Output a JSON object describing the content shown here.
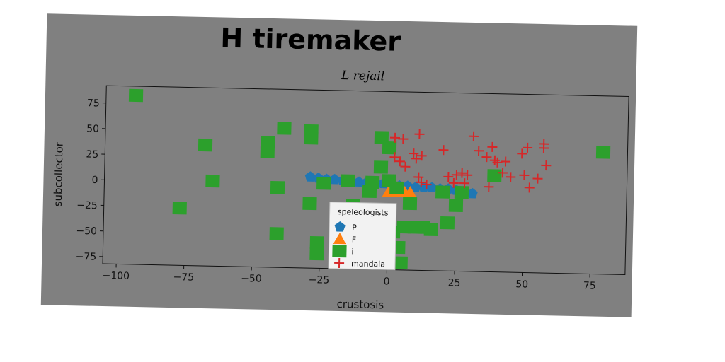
{
  "chart_data": {
    "type": "scatter",
    "title": "H tiremaker",
    "subtitle": "L rejail",
    "xlabel": "crustosis",
    "ylabel": "subcollector",
    "xlim": [
      -105,
      88
    ],
    "ylim": [
      -82,
      92
    ],
    "xticks": [
      -100,
      -75,
      -50,
      -25,
      0,
      25,
      50,
      75
    ],
    "yticks": [
      -75,
      -50,
      -25,
      0,
      25,
      50,
      75
    ],
    "grid": false,
    "legend": {
      "title": "speleologists",
      "placement": "lower-center"
    },
    "series": [
      {
        "name": "P",
        "marker": "pentagon",
        "color": "#1f77b4",
        "points": [
          [
            -29,
            7
          ],
          [
            -26,
            6
          ],
          [
            -23,
            5
          ],
          [
            -20,
            5
          ],
          [
            -17,
            4
          ],
          [
            -14,
            4
          ],
          [
            -11,
            3
          ],
          [
            -8,
            3
          ],
          [
            -5,
            2
          ],
          [
            -2,
            2
          ],
          [
            1,
            1
          ],
          [
            4,
            0
          ],
          [
            7,
            0
          ],
          [
            10,
            -1
          ],
          [
            13,
            -1
          ],
          [
            16,
            -1
          ],
          [
            19,
            -2
          ],
          [
            22,
            -2
          ],
          [
            25,
            -3
          ],
          [
            28,
            -4
          ],
          [
            31,
            -6
          ]
        ]
      },
      {
        "name": "F",
        "marker": "triangle",
        "color": "#ff7f0e",
        "points": [
          [
            0,
            -6
          ],
          [
            2,
            -6
          ],
          [
            4,
            -6
          ],
          [
            6,
            -6
          ],
          [
            8,
            -6
          ],
          [
            3,
            -4
          ]
        ]
      },
      {
        "name": "i",
        "marker": "square",
        "color": "#2ca02c",
        "points": [
          [
            -94,
            83
          ],
          [
            -68,
            36
          ],
          [
            -65,
            1
          ],
          [
            -77,
            -26
          ],
          [
            -45,
            40
          ],
          [
            -45,
            31
          ],
          [
            -39,
            54
          ],
          [
            -41,
            -4
          ],
          [
            -41,
            -49
          ],
          [
            -29,
            52
          ],
          [
            -29,
            45
          ],
          [
            -29,
            -19
          ],
          [
            -24,
            1
          ],
          [
            -26,
            -57
          ],
          [
            -26,
            -68
          ],
          [
            -15,
            4
          ],
          [
            -13,
            -20
          ],
          [
            -10,
            -24
          ],
          [
            -7,
            -6
          ],
          [
            -6,
            3
          ],
          [
            -3,
            47
          ],
          [
            -3,
            18
          ],
          [
            0,
            5
          ],
          [
            0,
            37
          ],
          [
            2,
            -45
          ],
          [
            3,
            -2
          ],
          [
            4,
            -60
          ],
          [
            5,
            -75
          ],
          [
            6,
            -40
          ],
          [
            8,
            -17
          ],
          [
            10,
            -40
          ],
          [
            13,
            -40
          ],
          [
            16,
            -42
          ],
          [
            20,
            -5
          ],
          [
            22,
            -35
          ],
          [
            25,
            -18
          ],
          [
            27,
            -5
          ],
          [
            39,
            12
          ],
          [
            79,
            37
          ]
        ]
      },
      {
        "name": "mandala",
        "marker": "plus",
        "color": "#d62728",
        "points": [
          [
            2,
            47
          ],
          [
            5,
            46
          ],
          [
            11,
            51
          ],
          [
            2,
            28
          ],
          [
            4,
            24
          ],
          [
            6,
            19
          ],
          [
            9,
            32
          ],
          [
            10,
            27
          ],
          [
            12,
            30
          ],
          [
            11,
            9
          ],
          [
            12,
            4
          ],
          [
            14,
            2
          ],
          [
            20,
            36
          ],
          [
            22,
            10
          ],
          [
            25,
            12
          ],
          [
            27,
            14
          ],
          [
            28,
            4
          ],
          [
            29,
            12
          ],
          [
            31,
            50
          ],
          [
            33,
            36
          ],
          [
            36,
            30
          ],
          [
            38,
            40
          ],
          [
            39,
            27
          ],
          [
            40,
            25
          ],
          [
            42,
            15
          ],
          [
            43,
            26
          ],
          [
            45,
            11
          ],
          [
            49,
            34
          ],
          [
            51,
            40
          ],
          [
            50,
            13
          ],
          [
            52,
            1
          ],
          [
            55,
            10
          ],
          [
            57,
            44
          ],
          [
            57,
            40
          ],
          [
            58,
            23
          ],
          [
            37,
            1
          ],
          [
            24,
            4
          ]
        ]
      }
    ]
  }
}
